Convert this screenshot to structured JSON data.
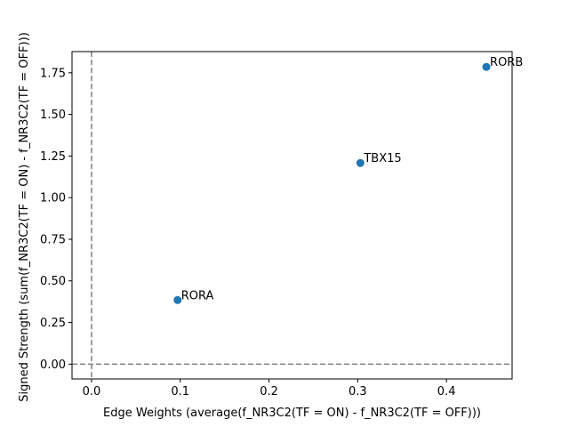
{
  "chart_data": {
    "type": "scatter",
    "title": "",
    "xlabel": "Edge Weights (average(f_NR3C2(TF = ON) - f_NR3C2(TF = OFF)))",
    "ylabel": "Signed Strength (sum(f_NR3C2(TF = ON) - f_NR3C2(TF = OFF)))",
    "xlim": [
      -0.022,
      0.474
    ],
    "ylim": [
      -0.089,
      1.877
    ],
    "xticks": [
      0.0,
      0.1,
      0.2,
      0.3,
      0.4
    ],
    "xtick_labels": [
      "0.0",
      "0.1",
      "0.2",
      "0.3",
      "0.4"
    ],
    "yticks": [
      0.0,
      0.25,
      0.5,
      0.75,
      1.0,
      1.25,
      1.5,
      1.75
    ],
    "ytick_labels": [
      "0.00",
      "0.25",
      "0.50",
      "0.75",
      "1.00",
      "1.25",
      "1.50",
      "1.75"
    ],
    "grid": false,
    "reference_lines": [
      {
        "axis": "x",
        "value": 0.0,
        "style": "dashed",
        "color": "#808080"
      },
      {
        "axis": "y",
        "value": 0.0,
        "style": "dashed",
        "color": "#808080"
      }
    ],
    "point_color": "#1f77b4",
    "points": [
      {
        "label": "RORA",
        "x": 0.097,
        "y": 0.385
      },
      {
        "label": "TBX15",
        "x": 0.303,
        "y": 1.208
      },
      {
        "label": "RORB",
        "x": 0.445,
        "y": 1.785
      }
    ]
  }
}
